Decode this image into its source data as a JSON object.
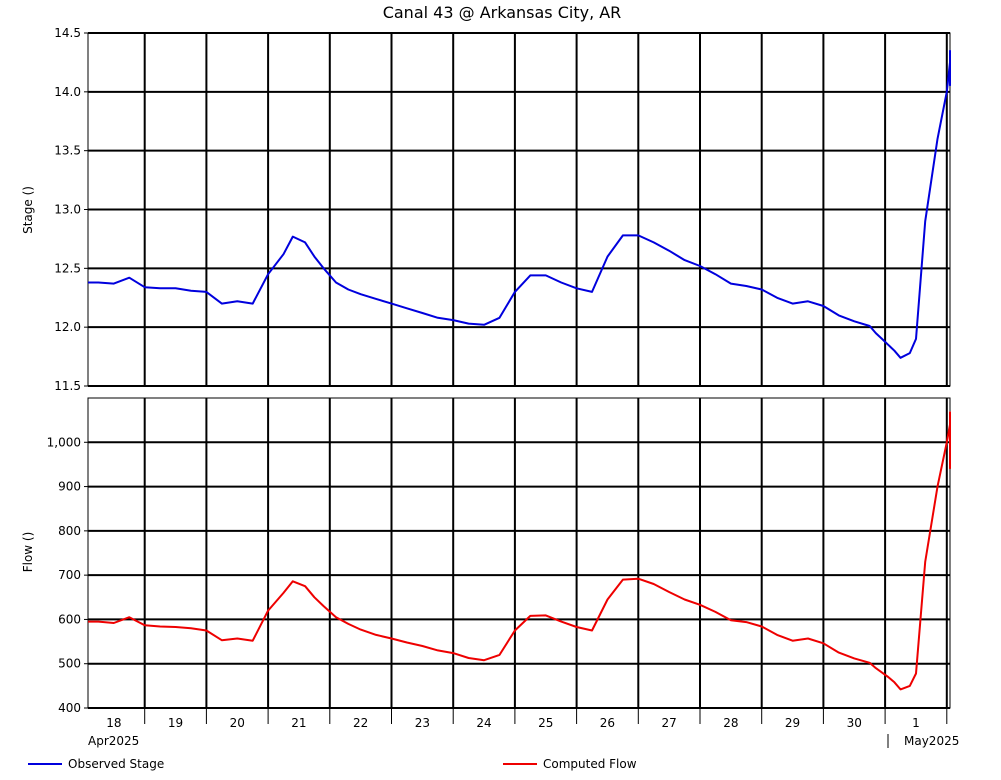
{
  "chart_data": [
    {
      "type": "line",
      "title": "Canal 43 @ Arkansas City, AR",
      "ylabel": "Stage ()",
      "ylim": [
        11.5,
        14.5
      ],
      "yticks": [
        "11.5",
        "12.0",
        "12.5",
        "13.0",
        "13.5",
        "14.0",
        "14.5"
      ],
      "grid": true,
      "series": [
        {
          "name": "Observed Stage",
          "color": "#0000dd",
          "x": [
            0,
            0.25,
            0.5,
            0.75,
            1.0,
            1.25,
            1.5,
            1.75,
            2.0,
            2.25,
            2.5,
            2.75,
            3.0,
            3.25,
            3.4,
            3.6,
            3.75,
            3.9,
            4.1,
            4.3,
            4.5,
            4.75,
            5.0,
            5.25,
            5.5,
            5.75,
            6.0,
            6.25,
            6.5,
            6.75,
            7.0,
            7.25,
            7.5,
            7.75,
            8.0,
            8.25,
            8.5,
            8.75,
            9.0,
            9.25,
            9.5,
            9.75,
            10.0,
            10.25,
            10.5,
            10.75,
            11.0,
            11.25,
            11.5,
            11.75,
            12.0,
            12.25,
            12.5,
            12.75,
            12.85,
            12.95,
            13.05,
            13.15,
            13.25,
            13.4,
            13.5,
            13.65,
            13.85,
            14.0
          ],
          "y": [
            12.38,
            12.38,
            12.37,
            12.42,
            12.34,
            12.33,
            12.33,
            12.31,
            12.3,
            12.2,
            12.22,
            12.2,
            12.45,
            12.62,
            12.77,
            12.72,
            12.6,
            12.5,
            12.38,
            12.32,
            12.28,
            12.24,
            12.2,
            12.16,
            12.12,
            12.08,
            12.06,
            12.03,
            12.02,
            12.08,
            12.3,
            12.44,
            12.44,
            12.38,
            12.33,
            12.3,
            12.6,
            12.78,
            12.78,
            12.72,
            12.65,
            12.57,
            12.52,
            12.45,
            12.37,
            12.35,
            12.32,
            12.25,
            12.2,
            12.22,
            12.18,
            12.1,
            12.05,
            12.01,
            11.95,
            11.9,
            11.85,
            11.8,
            11.74,
            11.78,
            11.9,
            12.9,
            13.6,
            14.0
          ],
          "continuation_x": [
            14.2,
            14.4,
            14.6,
            14.8,
            15.0
          ],
          "continuation_y": [
            14.25,
            14.35,
            14.33,
            14.2,
            14.05
          ]
        }
      ]
    },
    {
      "type": "line",
      "ylabel": "Flow ()",
      "ylim": [
        400,
        1100
      ],
      "yticks": [
        "400",
        "500",
        "600",
        "700",
        "800",
        "900",
        "1,000"
      ],
      "grid": true,
      "categories": [
        "18",
        "19",
        "20",
        "21",
        "22",
        "23",
        "24",
        "25",
        "26",
        "27",
        "28",
        "29",
        "30",
        "1"
      ],
      "date_labels": [
        "Apr2025",
        "May2025"
      ],
      "series": [
        {
          "name": "Computed Flow",
          "color": "#ee0000",
          "x": [
            0,
            0.25,
            0.5,
            0.75,
            1.0,
            1.25,
            1.5,
            1.75,
            2.0,
            2.25,
            2.5,
            2.75,
            3.0,
            3.25,
            3.4,
            3.6,
            3.75,
            3.9,
            4.1,
            4.3,
            4.5,
            4.75,
            5.0,
            5.25,
            5.5,
            5.75,
            6.0,
            6.25,
            6.5,
            6.75,
            7.0,
            7.25,
            7.5,
            7.75,
            8.0,
            8.25,
            8.5,
            8.75,
            9.0,
            9.25,
            9.5,
            9.75,
            10.0,
            10.25,
            10.5,
            10.75,
            11.0,
            11.25,
            11.5,
            11.75,
            12.0,
            12.25,
            12.5,
            12.75,
            12.85,
            12.95,
            13.05,
            13.15,
            13.25,
            13.4,
            13.5,
            13.65,
            13.85,
            14.0,
            14.2,
            14.4,
            14.6,
            14.8,
            15.0
          ],
          "y": [
            595,
            595,
            592,
            605,
            587,
            584,
            583,
            580,
            575,
            553,
            557,
            552,
            620,
            660,
            686,
            675,
            650,
            630,
            605,
            590,
            577,
            565,
            557,
            548,
            540,
            530,
            524,
            513,
            508,
            520,
            575,
            608,
            609,
            595,
            583,
            575,
            645,
            690,
            692,
            680,
            662,
            645,
            633,
            617,
            598,
            594,
            584,
            565,
            552,
            557,
            546,
            525,
            512,
            502,
            490,
            480,
            470,
            458,
            442,
            450,
            478,
            730,
            900,
            1000,
            1040,
            1068,
            1065,
            1010,
            940
          ]
        }
      ]
    }
  ],
  "legend": {
    "stage_label": "Observed Stage",
    "flow_label": "Computed Flow",
    "stage_color": "#0000dd",
    "flow_color": "#ee0000"
  }
}
